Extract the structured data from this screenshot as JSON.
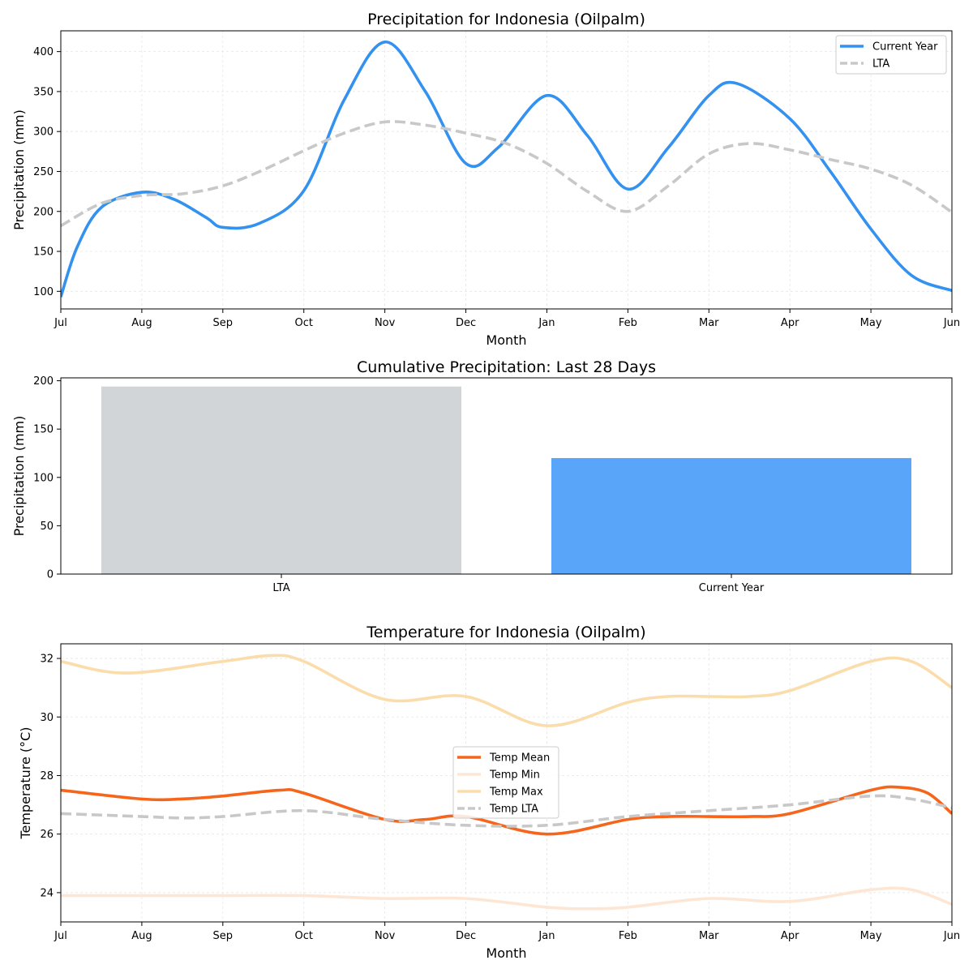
{
  "chart_data": [
    {
      "type": "line",
      "title": "Precipitation for Indonesia (Oilpalm)",
      "xlabel": "Month",
      "ylabel": "Precipitation (mm)",
      "ylim": [
        78,
        426
      ],
      "yticks": [
        100,
        150,
        200,
        250,
        300,
        350,
        400
      ],
      "grid": true,
      "legend_placement": "top-right",
      "categories": [
        "Jul",
        "Aug",
        "Sep",
        "Oct",
        "Nov",
        "Dec",
        "Jan",
        "Feb",
        "Mar",
        "Apr",
        "May",
        "Jun"
      ],
      "series": [
        {
          "name": "Current Year",
          "color": "#3391f0",
          "style": "solid",
          "x": [
            0,
            0.2,
            0.5,
            1,
            1.4,
            1.8,
            2,
            2.45,
            3,
            3.5,
            4,
            4.5,
            5,
            5.4,
            6,
            6.5,
            7,
            7.5,
            8,
            8.35,
            9,
            9.5,
            10,
            10.5,
            11
          ],
          "values": [
            93,
            155,
            205,
            224,
            215,
            192,
            180,
            185,
            226,
            340,
            412,
            350,
            260,
            280,
            345,
            295,
            228,
            280,
            345,
            360,
            316,
            250,
            178,
            120,
            101
          ]
        },
        {
          "name": "LTA",
          "color": "#c8c8c8",
          "style": "dashed",
          "x": [
            0,
            0.5,
            1,
            1.5,
            2,
            2.5,
            3,
            3.5,
            4,
            4.5,
            5,
            5.5,
            6,
            6.5,
            7,
            7.5,
            8,
            8.5,
            9,
            9.5,
            10,
            10.5,
            11
          ],
          "values": [
            182,
            210,
            220,
            222,
            232,
            252,
            276,
            298,
            312,
            308,
            298,
            285,
            260,
            225,
            200,
            232,
            272,
            285,
            277,
            265,
            253,
            233,
            199
          ]
        }
      ]
    },
    {
      "type": "bar",
      "title": "Cumulative Precipitation: Last 28 Days",
      "xlabel": "",
      "ylabel": "Precipitation (mm)",
      "ylim": [
        0,
        203
      ],
      "yticks": [
        0,
        50,
        100,
        150,
        200
      ],
      "categories": [
        "LTA",
        "Current Year"
      ],
      "values": [
        194,
        120
      ],
      "colors": [
        "#d1d5d8",
        "#59a5fa"
      ]
    },
    {
      "type": "line",
      "title": "Temperature for Indonesia (Oilpalm)",
      "xlabel": "Month",
      "ylabel": "Temperature (°C)",
      "ylim": [
        23.0,
        32.5
      ],
      "yticks": [
        24,
        26,
        28,
        30,
        32
      ],
      "grid": true,
      "legend_placement": "center",
      "categories": [
        "Jul",
        "Aug",
        "Sep",
        "Oct",
        "Nov",
        "Dec",
        "Jan",
        "Feb",
        "Mar",
        "Apr",
        "May",
        "Jun"
      ],
      "series": [
        {
          "name": "Temp Mean",
          "color": "#f5651b",
          "style": "solid",
          "x": [
            0,
            1,
            1.5,
            2,
            2.7,
            3,
            4,
            4.5,
            5,
            6,
            7,
            7.5,
            8,
            8.5,
            9,
            10,
            10.35,
            10.7,
            11
          ],
          "values": [
            27.5,
            27.2,
            27.2,
            27.3,
            27.5,
            27.4,
            26.5,
            26.5,
            26.6,
            26.0,
            26.5,
            26.6,
            26.6,
            26.6,
            26.7,
            27.5,
            27.6,
            27.4,
            26.7
          ]
        },
        {
          "name": "Temp Min",
          "color": "#fde6d3",
          "style": "solid",
          "x": [
            0,
            1,
            2,
            3,
            4,
            5,
            6,
            6.5,
            7,
            8,
            9,
            10,
            10.5,
            11
          ],
          "values": [
            23.9,
            23.9,
            23.9,
            23.9,
            23.8,
            23.8,
            23.5,
            23.45,
            23.5,
            23.8,
            23.7,
            24.1,
            24.1,
            23.6
          ]
        },
        {
          "name": "Temp Max",
          "color": "#fbdcab",
          "style": "solid",
          "x": [
            0,
            0.8,
            2,
            2.6,
            3,
            4,
            5,
            6,
            7,
            7.5,
            8,
            8.5,
            9,
            10,
            10.5,
            11
          ],
          "values": [
            31.9,
            31.5,
            31.9,
            32.1,
            31.9,
            30.6,
            30.7,
            29.7,
            30.5,
            30.7,
            30.7,
            30.7,
            30.9,
            31.9,
            31.9,
            31.0
          ]
        },
        {
          "name": "Temp LTA",
          "color": "#c8c8c8",
          "style": "dashed",
          "x": [
            0,
            1,
            1.5,
            2,
            3,
            4,
            5,
            6,
            7,
            8,
            9,
            10,
            10.5,
            11
          ],
          "values": [
            26.7,
            26.6,
            26.55,
            26.6,
            26.8,
            26.5,
            26.3,
            26.3,
            26.6,
            26.8,
            27.0,
            27.3,
            27.2,
            26.9
          ]
        }
      ]
    }
  ]
}
